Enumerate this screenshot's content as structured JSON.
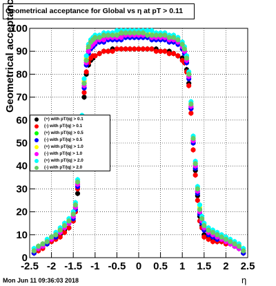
{
  "chart_data": {
    "type": "scatter",
    "title": "Geometrical acceptance for Global vs  η at pT > 0.11",
    "xlabel": "η",
    "ylabel": "Geometrical acceptance (%)",
    "xlim": [
      -2.5,
      2.5
    ],
    "ylim": [
      0,
      100
    ],
    "x_ticks": [
      "-2.5",
      "-2",
      "-1.5",
      "-1",
      "-0.5",
      "0",
      "0.5",
      "1",
      "1.5",
      "2",
      "2.5"
    ],
    "y_ticks": [
      "0",
      "10",
      "20",
      "30",
      "40",
      "50",
      "60",
      "70",
      "80",
      "90",
      "100"
    ],
    "grid": true,
    "legend_position": "left-middle",
    "x": [
      -2.4,
      -2.3,
      -2.2,
      -2.1,
      -2.0,
      -1.9,
      -1.8,
      -1.7,
      -1.6,
      -1.5,
      -1.45,
      -1.4,
      -1.35,
      -1.3,
      -1.25,
      -1.2,
      -1.15,
      -1.1,
      -1.05,
      -1.0,
      -0.9,
      -0.8,
      -0.7,
      -0.6,
      -0.5,
      -0.4,
      -0.3,
      -0.2,
      -0.1,
      0.0,
      0.1,
      0.2,
      0.3,
      0.4,
      0.5,
      0.6,
      0.7,
      0.8,
      0.9,
      1.0,
      1.05,
      1.1,
      1.15,
      1.2,
      1.25,
      1.3,
      1.35,
      1.4,
      1.45,
      1.5,
      1.6,
      1.7,
      1.8,
      1.9,
      2.0,
      2.1,
      2.2,
      2.3,
      2.4
    ],
    "series": [
      {
        "name": "(+) with pT/|q| > 0.1",
        "color": "#000000",
        "values": [
          2,
          4,
          5,
          6,
          7,
          9,
          10,
          12,
          13,
          16,
          20,
          28,
          40,
          55,
          70,
          80,
          84,
          86,
          87,
          88,
          89,
          90,
          90,
          91,
          91,
          91,
          91,
          91,
          91,
          91,
          91,
          91,
          91,
          91,
          90,
          90,
          90,
          89,
          88,
          87,
          85,
          82,
          76,
          65,
          50,
          38,
          27,
          18,
          14,
          10,
          9,
          8,
          7,
          7,
          7,
          6,
          5,
          4,
          2
        ]
      },
      {
        "name": "(-) with pT/|q| > 0.1",
        "color": "#ff0000",
        "values": [
          2,
          3,
          4,
          6,
          7,
          8,
          9,
          11,
          13,
          16,
          20,
          30,
          42,
          56,
          72,
          81,
          85,
          87,
          88,
          88,
          89,
          90,
          90,
          90,
          91,
          91,
          91,
          91,
          91,
          91,
          91,
          91,
          91,
          90,
          90,
          90,
          89,
          89,
          88,
          86,
          85,
          81,
          75,
          63,
          47,
          36,
          25,
          16,
          13,
          9,
          8,
          7,
          7,
          7,
          6,
          6,
          5,
          4,
          2
        ]
      },
      {
        "name": "(+) with pT/|q| > 0.5",
        "color": "#00ff00",
        "values": [
          3,
          4,
          5,
          7,
          8,
          10,
          12,
          14,
          15,
          18,
          22,
          32,
          45,
          60,
          76,
          86,
          91,
          93,
          94,
          95,
          95,
          96,
          96,
          96,
          97,
          97,
          97,
          97,
          97,
          97,
          97,
          97,
          97,
          96,
          96,
          96,
          96,
          95,
          94,
          92,
          90,
          86,
          79,
          66,
          51,
          40,
          29,
          21,
          16,
          13,
          11,
          10,
          9,
          9,
          8,
          7,
          6,
          5,
          3
        ]
      },
      {
        "name": "(-) with pT/|q| > 0.5",
        "color": "#0000ff",
        "values": [
          2,
          4,
          5,
          6,
          8,
          9,
          11,
          13,
          15,
          17,
          21,
          31,
          43,
          58,
          74,
          84,
          89,
          91,
          92,
          93,
          94,
          94,
          95,
          95,
          95,
          95,
          96,
          96,
          96,
          96,
          96,
          96,
          95,
          95,
          95,
          95,
          94,
          94,
          93,
          91,
          89,
          85,
          78,
          65,
          50,
          39,
          28,
          19,
          15,
          12,
          10,
          9,
          8,
          8,
          7,
          6,
          5,
          4,
          2
        ]
      },
      {
        "name": "(+) with pT/|q| > 1.0",
        "color": "#ffff00",
        "values": [
          3,
          5,
          6,
          7,
          9,
          10,
          12,
          14,
          16,
          19,
          23,
          33,
          46,
          61,
          77,
          87,
          92,
          94,
          95,
          96,
          96,
          97,
          97,
          97,
          98,
          98,
          98,
          98,
          98,
          98,
          98,
          98,
          98,
          97,
          97,
          97,
          96,
          96,
          95,
          93,
          91,
          87,
          80,
          67,
          52,
          41,
          30,
          22,
          17,
          14,
          12,
          11,
          10,
          9,
          8,
          7,
          6,
          5,
          3
        ]
      },
      {
        "name": "(-) with pT/|q| > 1.0",
        "color": "#ff00ff",
        "values": [
          3,
          4,
          5,
          7,
          8,
          10,
          11,
          13,
          15,
          18,
          22,
          32,
          44,
          59,
          75,
          85,
          90,
          92,
          93,
          94,
          95,
          95,
          96,
          96,
          96,
          96,
          97,
          97,
          97,
          97,
          97,
          97,
          96,
          96,
          96,
          96,
          95,
          95,
          94,
          92,
          90,
          86,
          79,
          66,
          51,
          40,
          29,
          20,
          16,
          13,
          11,
          10,
          9,
          8,
          7,
          6,
          5,
          4,
          3
        ]
      },
      {
        "name": "(+) with pT/|q| > 2.0",
        "color": "#00ffff",
        "values": [
          4,
          5,
          6,
          8,
          9,
          11,
          13,
          15,
          17,
          20,
          24,
          34,
          47,
          62,
          78,
          88,
          93,
          95,
          96,
          97,
          97,
          98,
          98,
          98,
          99,
          99,
          99,
          99,
          99,
          99,
          99,
          99,
          99,
          98,
          98,
          98,
          97,
          97,
          96,
          94,
          92,
          88,
          81,
          68,
          53,
          42,
          31,
          23,
          18,
          15,
          13,
          12,
          11,
          10,
          9,
          8,
          7,
          6,
          4
        ]
      },
      {
        "name": "(-) with pT/|q| > 2.0",
        "color": "#66cc66",
        "values": [
          3,
          5,
          6,
          7,
          9,
          10,
          12,
          14,
          16,
          19,
          23,
          33,
          45,
          60,
          76,
          86,
          92,
          94,
          95,
          96,
          96,
          97,
          97,
          97,
          97,
          98,
          98,
          98,
          98,
          98,
          98,
          97,
          97,
          97,
          97,
          97,
          96,
          96,
          95,
          93,
          91,
          87,
          80,
          67,
          52,
          41,
          30,
          21,
          17,
          14,
          12,
          11,
          10,
          9,
          8,
          7,
          6,
          5,
          3
        ]
      }
    ]
  },
  "footer": {
    "date_stamp": "Mon Jun 11 09:36:03 2018"
  }
}
